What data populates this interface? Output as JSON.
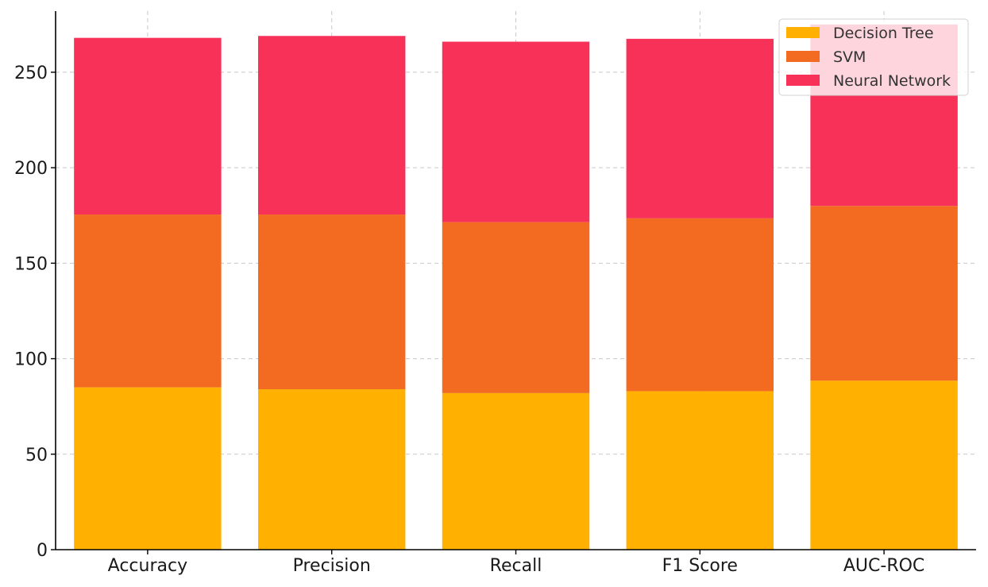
{
  "chart_data": {
    "type": "bar",
    "stacked": true,
    "title": "",
    "xlabel": "",
    "ylabel": "",
    "categories": [
      "Accuracy",
      "Precision",
      "Recall",
      "F1 Score",
      "AUC-ROC"
    ],
    "series": [
      {
        "name": "Decision Tree",
        "color": "#FFB000",
        "values": [
          85,
          84,
          82,
          83,
          88.5
        ]
      },
      {
        "name": "SVM",
        "color": "#F26B21",
        "values": [
          90.5,
          91.5,
          89.5,
          90.5,
          91.5
        ]
      },
      {
        "name": "Neural Network",
        "color": "#F73158",
        "values": [
          92.5,
          93.5,
          94.5,
          94,
          95
        ]
      }
    ],
    "ylim": [
      0,
      282
    ],
    "yticks": [
      0,
      50,
      100,
      150,
      200,
      250
    ],
    "grid": true,
    "legend_position": "top-right"
  }
}
